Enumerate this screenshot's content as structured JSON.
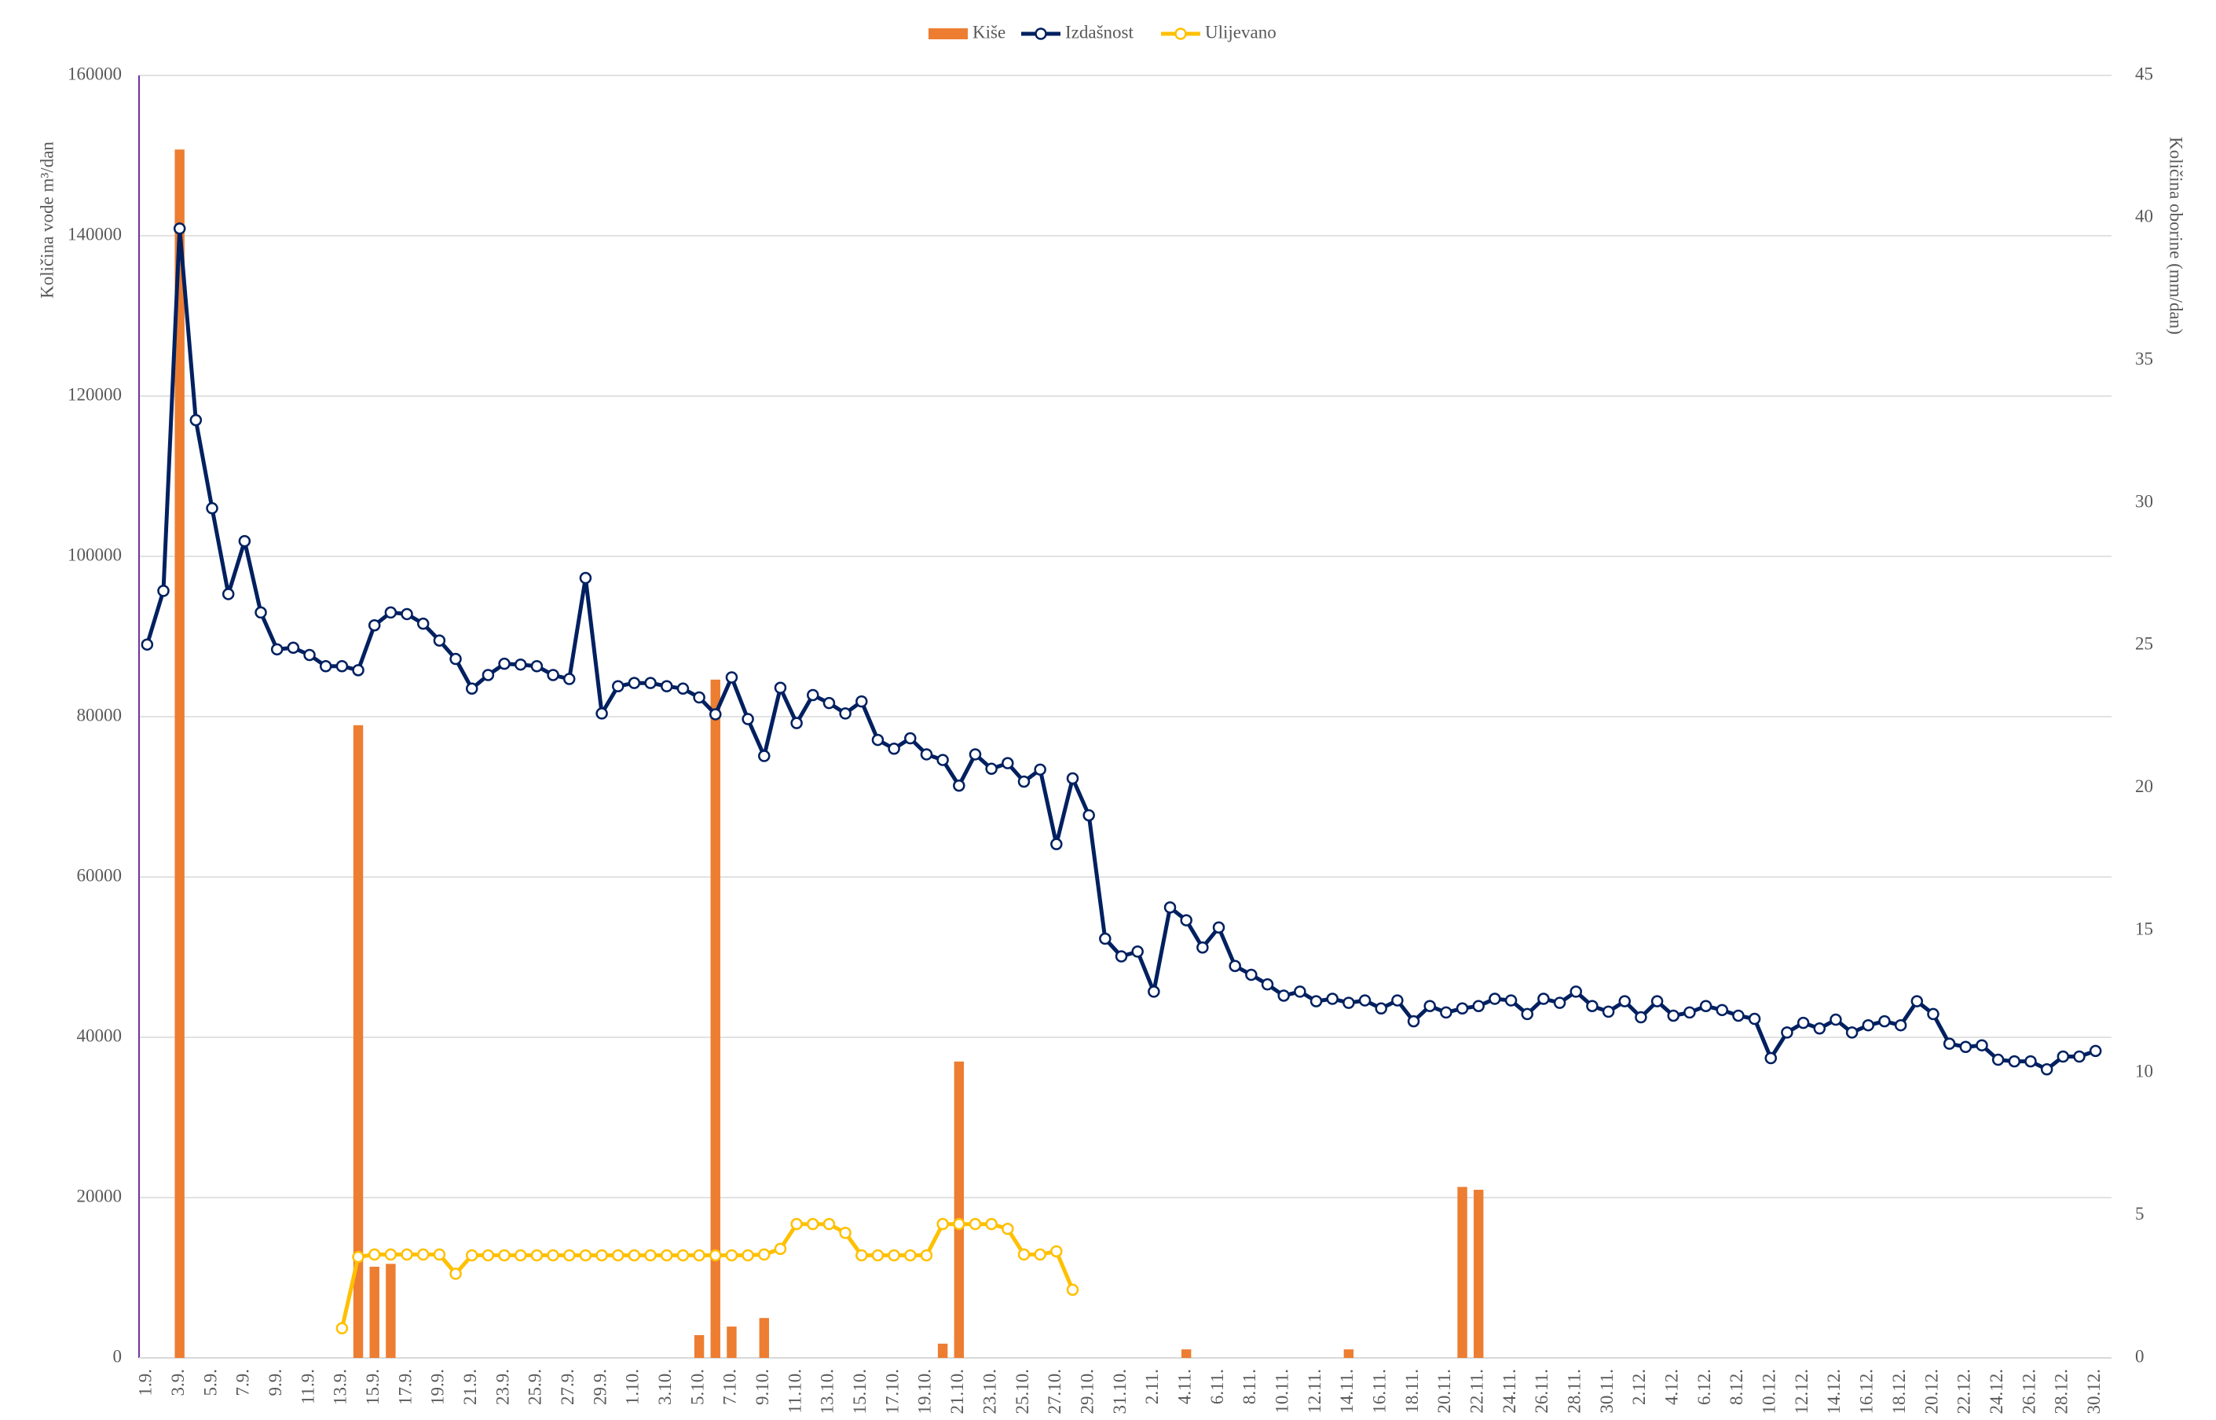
{
  "chart_data": {
    "type": "combo",
    "ylabel": "Količina vode m³/dan",
    "y2label": "Količina oborine (mm/dan)",
    "categories": [
      "1.9.",
      null,
      "3.9.",
      null,
      "5.9.",
      null,
      "7.9.",
      null,
      "9.9.",
      null,
      "11.9.",
      null,
      "13.9.",
      null,
      "15.9.",
      null,
      "17.9.",
      null,
      "19.9.",
      null,
      "21.9.",
      null,
      "23.9.",
      null,
      "25.9.",
      null,
      "27.9.",
      null,
      "29.9.",
      null,
      "1.10.",
      null,
      "3.10.",
      null,
      "5.10.",
      null,
      "7.10.",
      null,
      "9.10.",
      null,
      "11.10.",
      null,
      "13.10.",
      null,
      "15.10.",
      null,
      "17.10.",
      null,
      "19.10.",
      null,
      "21.10.",
      null,
      "23.10.",
      null,
      "25.10.",
      null,
      "27.10.",
      null,
      "29.10.",
      null,
      "31.10.",
      null,
      "2.11.",
      null,
      "4.11.",
      null,
      "6.11.",
      null,
      "8.11.",
      null,
      "10.11.",
      null,
      "12.11.",
      null,
      "14.11.",
      null,
      "16.11.",
      null,
      "18.11.",
      null,
      "20.11.",
      null,
      "22.11.",
      null,
      "24.11.",
      null,
      "26.11.",
      null,
      "28.11.",
      null,
      "30.11.",
      null,
      "2.12.",
      null,
      "4.12.",
      null,
      "6.12.",
      null,
      "8.12.",
      null,
      "10.12.",
      null,
      "12.12.",
      null,
      "14.12.",
      null,
      "16.12.",
      null,
      "18.12.",
      null,
      "20.12.",
      null,
      "22.12.",
      null,
      "24.12.",
      null,
      "26.12.",
      null,
      "28.12.",
      null,
      "30.12."
    ],
    "series": [
      {
        "name": "Kiše",
        "type": "bar",
        "axis": "y2",
        "color": "#ed7d31",
        "values": [
          0,
          0,
          42.4,
          0,
          0,
          0,
          0,
          0,
          0,
          0,
          0,
          0,
          0,
          22.2,
          3.2,
          3.3,
          0,
          0,
          0,
          0,
          0,
          0,
          0,
          0,
          0,
          0,
          0,
          0,
          0,
          0,
          0,
          0,
          0,
          0,
          0.8,
          23.8,
          1.1,
          0,
          1.4,
          0,
          0,
          0,
          0,
          0,
          0,
          0,
          0,
          0,
          0,
          0.5,
          10.4,
          0,
          0,
          0,
          0,
          0,
          0,
          0,
          0,
          0,
          0,
          0,
          0,
          0,
          0.3,
          0,
          0,
          0,
          0,
          0,
          0,
          0,
          0,
          0,
          0.3,
          0,
          0,
          0,
          0,
          0,
          0,
          6.0,
          5.9,
          0,
          0,
          0,
          0,
          0,
          0,
          0,
          0,
          0,
          0,
          0,
          0,
          0,
          0,
          0,
          0,
          0,
          0,
          0,
          0,
          0,
          0,
          0,
          0,
          0,
          0,
          0,
          0,
          0,
          0,
          0,
          0,
          0,
          0,
          0,
          0,
          0,
          0
        ]
      },
      {
        "name": "Izdašnost",
        "type": "line",
        "color": "#002060",
        "values": [
          89000,
          95700,
          140900,
          117000,
          106000,
          95300,
          101900,
          93000,
          88400,
          88600,
          87700,
          86300,
          86300,
          85800,
          91400,
          93000,
          92800,
          91600,
          89500,
          87200,
          83500,
          85200,
          86600,
          86500,
          86300,
          85200,
          84700,
          97300,
          80400,
          83800,
          84200,
          84200,
          83800,
          83500,
          82400,
          80300,
          84900,
          79700,
          75100,
          83600,
          79200,
          82700,
          81700,
          80400,
          81900,
          77100,
          76000,
          77300,
          75300,
          74600,
          71400,
          75300,
          73500,
          74200,
          71900,
          73400,
          64100,
          72300,
          67700,
          52300,
          50100,
          50700,
          45700,
          56200,
          54600,
          51200,
          53700,
          48900,
          47800,
          46600,
          45200,
          45700,
          44500,
          44800,
          44300,
          44600,
          43600,
          44600,
          42000,
          43900,
          43100,
          43600,
          43900,
          44800,
          44600,
          42900,
          44800,
          44300,
          45700,
          43900,
          43200,
          44500,
          42500,
          44500,
          42700,
          43100,
          43900,
          43400,
          42700,
          42300,
          37400,
          40600,
          41800,
          41100,
          42200,
          40600,
          41500,
          42000,
          41500,
          44500,
          42900,
          39200,
          38800,
          39000,
          37200,
          37000,
          37000,
          36000,
          37600,
          37600,
          38300
        ]
      },
      {
        "name": "Ulijevano",
        "type": "line",
        "color": "#ffc000",
        "values": [
          null,
          null,
          null,
          null,
          null,
          null,
          null,
          null,
          null,
          null,
          null,
          null,
          3700,
          12600,
          12900,
          12900,
          12900,
          12900,
          12900,
          10500,
          12800,
          12800,
          12800,
          12800,
          12800,
          12800,
          12800,
          12800,
          12800,
          12800,
          12800,
          12800,
          12800,
          12800,
          12800,
          12800,
          12800,
          12800,
          12900,
          13600,
          16700,
          16700,
          16700,
          15600,
          12800,
          12800,
          12800,
          12800,
          12800,
          16700,
          16700,
          16700,
          16700,
          16100,
          12900,
          12900,
          13300,
          8500,
          null,
          null,
          null,
          null,
          null,
          null,
          null,
          null,
          null,
          null,
          null,
          null,
          null,
          null,
          null,
          null,
          null,
          null,
          null,
          null,
          null,
          null,
          null,
          null,
          null,
          null,
          null,
          null,
          null,
          null,
          null,
          null,
          null,
          null,
          null,
          null,
          null,
          null,
          null,
          null,
          null,
          null,
          null,
          null,
          null,
          null,
          null,
          null,
          null,
          null,
          null,
          null,
          null,
          null,
          null,
          null,
          null,
          null,
          null,
          null,
          null,
          null,
          null
        ]
      }
    ],
    "ylim": [
      0,
      160000
    ],
    "yticks": [
      0,
      20000,
      40000,
      60000,
      80000,
      100000,
      120000,
      140000,
      160000
    ],
    "y2lim": [
      0,
      45
    ],
    "y2ticks": [
      0,
      5,
      10,
      15,
      20,
      25,
      30,
      35,
      40,
      45
    ],
    "grid": true,
    "legend": "top"
  }
}
